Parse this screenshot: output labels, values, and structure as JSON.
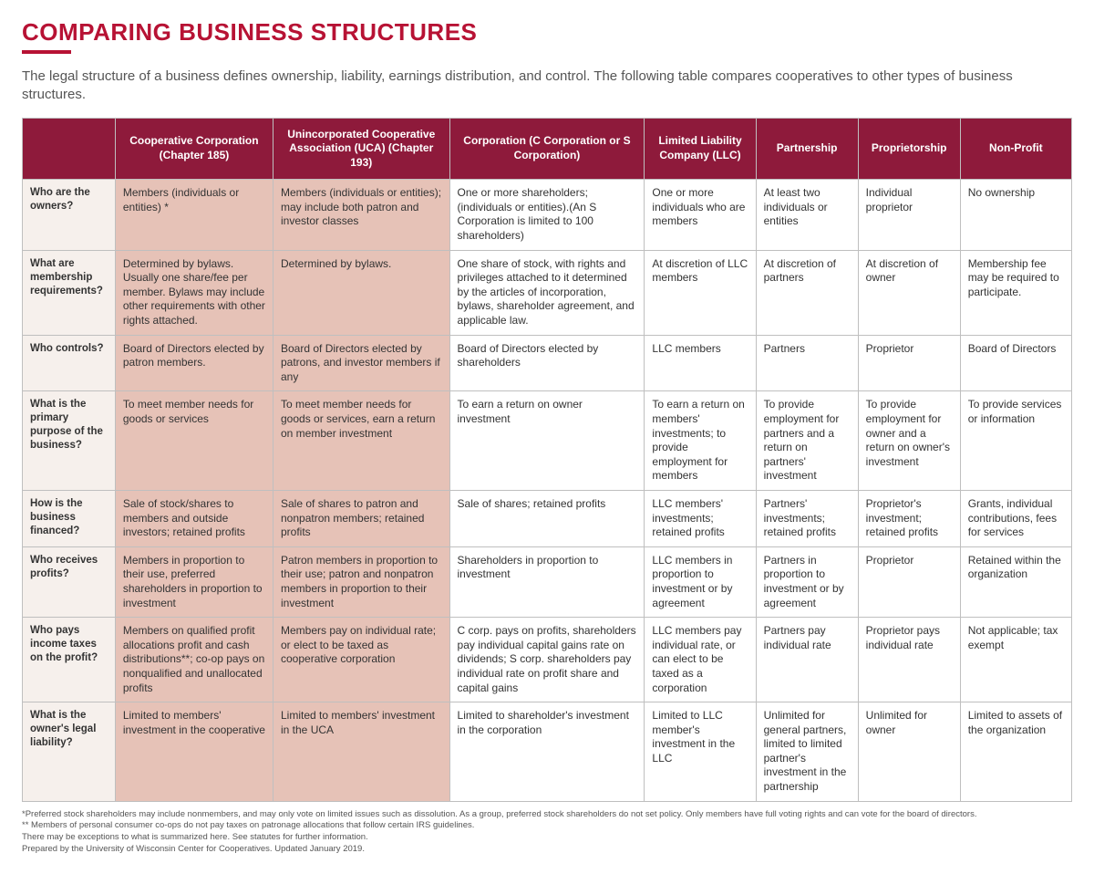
{
  "title": "COMPARING BUSINESS STRUCTURES",
  "intro": "The legal structure of a business defines ownership, liability, earnings distribution, and control. The following table compares cooperatives to other types of business structures.",
  "columns": [
    "Cooperative Corporation (Chapter 185)",
    "Unincorporated Cooperative Association (UCA) (Chapter 193)",
    "Corporation (C Corporation or S Corporation)",
    "Limited Liability Company (LLC)",
    "Partnership",
    "Proprietorship",
    "Non-Profit"
  ],
  "rows": [
    {
      "label": "Who are the owners?",
      "cells": [
        "Members (individuals or entities) *",
        "Members (individuals or entities); may include both patron and investor classes",
        "One or more shareholders; (individuals or entities).(An S Corporation is limited to 100 shareholders)",
        "One or more individuals who are members",
        "At least two individuals or entities",
        "Individual proprietor",
        "No ownership"
      ]
    },
    {
      "label": "What are membership requirements?",
      "cells": [
        "Determined by bylaws. Usually one share/fee per member. Bylaws may include other requirements with other rights attached.",
        "Determined by bylaws.",
        "One share of stock, with rights and privileges attached to it determined by the articles of incorporation, bylaws, shareholder agreement, and applicable law.",
        "At discretion of LLC members",
        "At discretion of partners",
        "At discretion of owner",
        "Membership fee may be required to participate."
      ]
    },
    {
      "label": "Who controls?",
      "cells": [
        "Board of Directors elected by patron members.",
        "Board of Directors elected by patrons, and investor members if any",
        "Board of Directors elected by shareholders",
        "LLC members",
        "Partners",
        "Proprietor",
        "Board of Directors"
      ]
    },
    {
      "label": "What is the primary purpose of the business?",
      "cells": [
        "To meet member needs for goods or services",
        "To meet member needs for goods or services, earn a return on member investment",
        "To earn a return on owner investment",
        "To earn a return on members' investments; to provide employment for members",
        "To provide employment for partners and a return on partners' investment",
        "To provide employment for owner and a return on owner's investment",
        "To provide services or information"
      ]
    },
    {
      "label": "How is the business financed?",
      "cells": [
        "Sale of stock/shares to members and outside investors; retained profits",
        "Sale of shares to patron and nonpatron members; retained profits",
        "Sale of shares; retained profits",
        "LLC members' investments; retained profits",
        "Partners' investments; retained profits",
        "Proprietor's investment; retained profits",
        "Grants, individual contributions, fees for services"
      ]
    },
    {
      "label": "Who receives profits?",
      "cells": [
        "Members in proportion to their use, preferred shareholders in proportion to investment",
        "Patron members in proportion to their use; patron and nonpatron members in proportion to their investment",
        "Shareholders in proportion to investment",
        "LLC members in proportion to investment or by agreement",
        "Partners in proportion to investment or by agreement",
        "Proprietor",
        "Retained within the organization"
      ]
    },
    {
      "label": "Who pays income taxes on the profit?",
      "cells": [
        "Members on qualified profit allocations profit and cash distributions**; co-op pays on nonqualified and unallocated profits",
        "Members pay on individual rate; or elect to be taxed as cooperative corporation",
        "C corp. pays on profits, shareholders pay individual capital gains rate on dividends; S corp. shareholders pay individual rate on profit share and capital gains",
        "LLC members pay individual rate, or can elect to be taxed as a corporation",
        "Partners pay individual rate",
        "Proprietor pays individual rate",
        "Not applicable; tax exempt"
      ]
    },
    {
      "label": "What is the owner's legal liability?",
      "cells": [
        "Limited to members' investment in the cooperative",
        "Limited to members' investment in the UCA",
        "Limited to shareholder's investment in the corporation",
        "Limited to  LLC member's investment in the LLC",
        "Unlimited for general partners, limited to limited partner's investment in the partnership",
        "Unlimited for owner",
        "Limited to assets of the organization"
      ]
    }
  ],
  "footnotes": [
    "*Preferred stock shareholders may include nonmembers, and may only vote on limited issues such as dissolution. As a group, preferred stock shareholders do not set policy. Only members have full voting rights and can vote for the board of directors.",
    "** Members of personal consumer co-ops do not pay taxes on patronage allocations that follow certain IRS guidelines.",
    "There may be exceptions to what is summarized here. See statutes for further information.",
    "Prepared by the University of Wisconsin Center for Cooperatives. Updated January 2019."
  ],
  "style": {
    "header_bg": "#8e1a3b",
    "highlight_bg": "#e6c2b7",
    "rowlabel_bg": "#f6f0ec",
    "title_color": "#b71234",
    "border_color": "#bfbfbf"
  }
}
